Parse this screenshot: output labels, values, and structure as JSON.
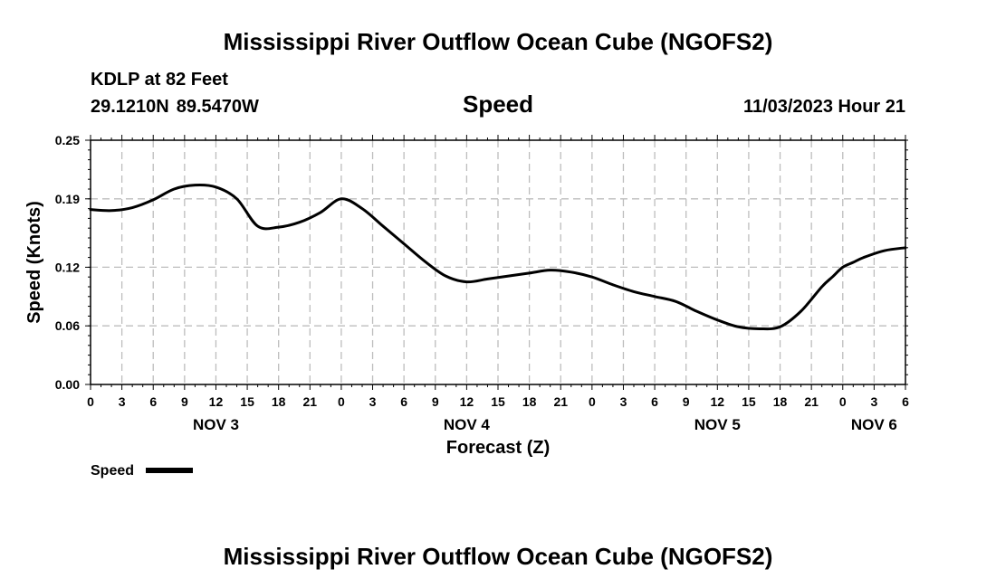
{
  "header": {
    "title": "Mississippi River Outflow Ocean Cube (NGOFS2)",
    "station": "KDLP at 82 Feet",
    "latitude": "29.1210N",
    "longitude": "89.5470W",
    "datetime": "11/03/2023 Hour 21"
  },
  "footer": {
    "title": "Mississippi River Outflow Ocean Cube (NGOFS2)"
  },
  "chart_data": {
    "type": "line",
    "title": "Speed",
    "xlabel": "Forecast (Z)",
    "ylabel": "Speed (Knots)",
    "xlim": [
      0,
      78
    ],
    "ylim": [
      0,
      0.25
    ],
    "yticks": [
      0.0,
      0.06,
      0.12,
      0.19,
      0.25
    ],
    "ytick_labels": [
      "0.00",
      "0.06",
      "0.12",
      "0.19",
      "0.25"
    ],
    "xticks": [
      0,
      3,
      6,
      9,
      12,
      15,
      18,
      21,
      24,
      27,
      30,
      33,
      36,
      39,
      42,
      45,
      48,
      51,
      54,
      57,
      60,
      63,
      66,
      69,
      72,
      75,
      78
    ],
    "xtick_labels": [
      "0",
      "3",
      "6",
      "9",
      "12",
      "15",
      "18",
      "21",
      "0",
      "3",
      "6",
      "9",
      "12",
      "15",
      "18",
      "21",
      "0",
      "3",
      "6",
      "9",
      "12",
      "15",
      "18",
      "21",
      "0",
      "3",
      "6"
    ],
    "day_labels": [
      {
        "label": "NOV 3",
        "hour": 12
      },
      {
        "label": "NOV 4",
        "hour": 36
      },
      {
        "label": "NOV 5",
        "hour": 60
      },
      {
        "label": "NOV 6",
        "hour": 75
      }
    ],
    "grid": true,
    "legend": "bottom-left",
    "series": [
      {
        "name": "Speed",
        "color": "#000000",
        "x": [
          0,
          2,
          4,
          6,
          8,
          10,
          12,
          14,
          16,
          18,
          20,
          22,
          24,
          26,
          28,
          30,
          32,
          34,
          36,
          38,
          40,
          42,
          44,
          46,
          48,
          50,
          52,
          54,
          56,
          58,
          60,
          62,
          64,
          66,
          68,
          70,
          71,
          72,
          73,
          74,
          76,
          78
        ],
        "values": [
          0.179,
          0.178,
          0.181,
          0.189,
          0.2,
          0.204,
          0.202,
          0.19,
          0.162,
          0.161,
          0.166,
          0.176,
          0.19,
          0.18,
          0.162,
          0.144,
          0.126,
          0.111,
          0.105,
          0.108,
          0.111,
          0.114,
          0.117,
          0.115,
          0.11,
          0.102,
          0.095,
          0.09,
          0.085,
          0.075,
          0.066,
          0.059,
          0.057,
          0.059,
          0.075,
          0.1,
          0.11,
          0.12,
          0.125,
          0.13,
          0.137,
          0.14
        ]
      }
    ]
  }
}
